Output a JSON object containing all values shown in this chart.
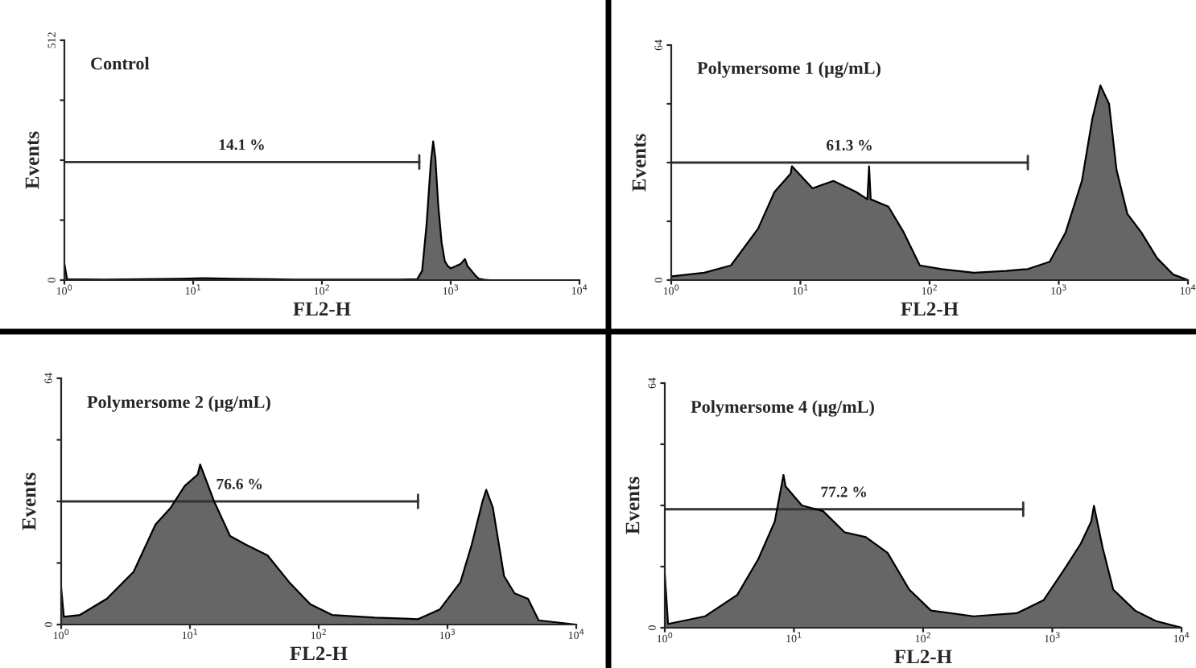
{
  "chart_data": [
    {
      "type": "area",
      "title": "Control",
      "xlabel": "FL2-H",
      "ylabel": "Events",
      "log": "x",
      "grid": false,
      "xlim": [
        1,
        10000
      ],
      "xticks": [
        {
          "value": 1,
          "label": "10$^{0}$"
        },
        {
          "value": 10,
          "label": "10$^{1}$"
        },
        {
          "value": 100,
          "label": "10$^{2}$"
        },
        {
          "value": 1000,
          "label": "10$^{3}$"
        },
        {
          "value": 10000,
          "label": "10$^{4}$"
        }
      ],
      "ylim": [
        0,
        512
      ],
      "yticks": [
        0,
        {
          "value": 128,
          "label": null
        },
        {
          "value": 256,
          "label": null
        },
        {
          "value": 384,
          "label": null
        },
        512
      ],
      "annotations": [
        "14.1 %"
      ],
      "series": [
        {
          "type": "line",
          "color": "#333333",
          "x": [
            1,
            570
          ],
          "values": [
            252,
            252
          ]
        },
        {
          "color": "#666666",
          "x": [
            1,
            1.05,
            2,
            4,
            8,
            12,
            20,
            40,
            60,
            100,
            200,
            400,
            550,
            600,
            650,
            700,
            731,
            760,
            800,
            850,
            900,
            950,
            1000,
            1100,
            1200,
            1290,
            1350,
            1450,
            1550,
            1650,
            1800,
            2000,
            10000
          ],
          "values": [
            35,
            2,
            1,
            2,
            3,
            4,
            3,
            2,
            1,
            1,
            1,
            1,
            2,
            20,
            120,
            250,
            296,
            260,
            160,
            80,
            40,
            30,
            25,
            30,
            35,
            45,
            30,
            20,
            10,
            3,
            1,
            0,
            0
          ]
        }
      ]
    },
    {
      "type": "area",
      "title": "Polymersome 1 (µg/mL)",
      "xlabel": "FL2-H",
      "ylabel": "Events",
      "log": "x",
      "grid": false,
      "xlim": [
        1,
        10000
      ],
      "xticks": [
        {
          "value": 1,
          "label": "10$^{0}$"
        },
        {
          "value": 10,
          "label": "10$^{1}$"
        },
        {
          "value": 100,
          "label": "10$^{2}$"
        },
        {
          "value": 1000,
          "label": "10$^{3}$"
        },
        {
          "value": 10000,
          "label": "10$^{4}$"
        }
      ],
      "ylim": [
        0,
        64
      ],
      "yticks": [
        0,
        {
          "value": 16,
          "label": null
        },
        {
          "value": 32,
          "label": null
        },
        {
          "value": 48,
          "label": null
        },
        64
      ],
      "annotations": [
        "61.3 %"
      ],
      "series": [
        {
          "type": "line",
          "color": "#333333",
          "x": [
            1,
            576
          ],
          "values": [
            32,
            32
          ]
        },
        {
          "color": "#666666",
          "x": [
            1,
            1.8,
            2.9,
            4.7,
            6.3,
            8.4,
            8.6,
            12.4,
            18,
            27,
            33,
            34,
            35,
            48,
            63,
            84,
            124,
            220,
            390,
            576,
            850,
            1130,
            1510,
            1820,
            2100,
            2450,
            2800,
            3400,
            4350,
            5760,
            7700,
            10000
          ],
          "values": [
            1,
            2,
            4,
            14,
            24,
            29,
            31,
            25,
            27,
            24,
            22,
            31,
            22,
            20,
            13,
            4,
            3,
            2,
            2.5,
            3,
            5,
            13,
            27,
            44,
            53,
            48,
            30,
            18,
            13,
            6,
            1.5,
            0
          ]
        }
      ]
    },
    {
      "type": "area",
      "title": "Polymersome 2 (µg/mL)",
      "xlabel": "FL2-H",
      "ylabel": "Events",
      "log": "x",
      "grid": false,
      "xlim": [
        1,
        10000
      ],
      "xticks": [
        {
          "value": 1,
          "label": "10$^{0}$"
        },
        {
          "value": 10,
          "label": "10$^{1}$"
        },
        {
          "value": 100,
          "label": "10$^{2}$"
        },
        {
          "value": 1000,
          "label": "10$^{3}$"
        },
        {
          "value": 10000,
          "label": "10$^{4}$"
        }
      ],
      "ylim": [
        0,
        64
      ],
      "yticks": [
        0,
        {
          "value": 16,
          "label": null
        },
        {
          "value": 32,
          "label": null
        },
        {
          "value": 48,
          "label": null
        },
        64
      ],
      "annotations": [
        "76.6 %"
      ],
      "series": [
        {
          "type": "line",
          "color": "#333333",
          "x": [
            1,
            590
          ],
          "values": [
            32,
            32
          ]
        },
        {
          "color": "#666666",
          "x": [
            1,
            1.05,
            1.4,
            2.26,
            3.65,
            5.4,
            7.1,
            9.1,
            11.5,
            12,
            15.4,
            20.5,
            27.4,
            40,
            59,
            86,
            127,
            273,
            590,
            870,
            1260,
            1540,
            1870,
            2000,
            2250,
            2750,
            3320,
            4220,
            5100,
            10000
          ],
          "values": [
            9.5,
            2,
            2.5,
            6.7,
            13.7,
            26,
            30.4,
            36,
            39,
            41.6,
            32,
            23,
            20.7,
            18,
            11,
            5.3,
            2.5,
            1.8,
            1.4,
            3.9,
            11,
            20.7,
            32,
            35,
            30.4,
            12.6,
            8.1,
            6.7,
            1.1,
            0
          ]
        }
      ]
    },
    {
      "type": "area",
      "title": "Polymersome 4 (µg/mL)",
      "xlabel": "FL2-H",
      "ylabel": "Events",
      "log": "x",
      "grid": false,
      "xlim": [
        1,
        10000
      ],
      "xticks": [
        {
          "value": 1,
          "label": "10$^{0}$"
        },
        {
          "value": 10,
          "label": "10$^{1}$"
        },
        {
          "value": 100,
          "label": "10$^{2}$"
        },
        {
          "value": 1000,
          "label": "10$^{3}$"
        },
        {
          "value": 10000,
          "label": "10$^{4}$"
        }
      ],
      "ylim": [
        0,
        64
      ],
      "yticks": [
        0,
        {
          "value": 16,
          "label": null
        },
        {
          "value": 32,
          "label": null
        },
        {
          "value": 48,
          "label": null
        },
        64
      ],
      "annotations": [
        "77.2 %"
      ],
      "series": [
        {
          "type": "line",
          "color": "#333333",
          "x": [
            1,
            595
          ],
          "values": [
            31,
            31
          ]
        },
        {
          "color": "#666666",
          "x": [
            1,
            1.06,
            2.05,
            3.64,
            5.3,
            7.1,
            8.3,
            8.6,
            11.5,
            16.8,
            24.6,
            36,
            53,
            78,
            115,
            246,
            530,
            855,
            1250,
            1660,
            2000,
            2100,
            2450,
            2960,
            4370,
            6300,
            10000
          ],
          "values": [
            14,
            1,
            3,
            8.6,
            18,
            27.8,
            40,
            37,
            32,
            30.5,
            25,
            23.7,
            19.6,
            10,
            4.5,
            3,
            3.8,
            7.2,
            15.5,
            22,
            27.8,
            31.9,
            21,
            10,
            4.5,
            1.8,
            0
          ]
        }
      ]
    }
  ]
}
